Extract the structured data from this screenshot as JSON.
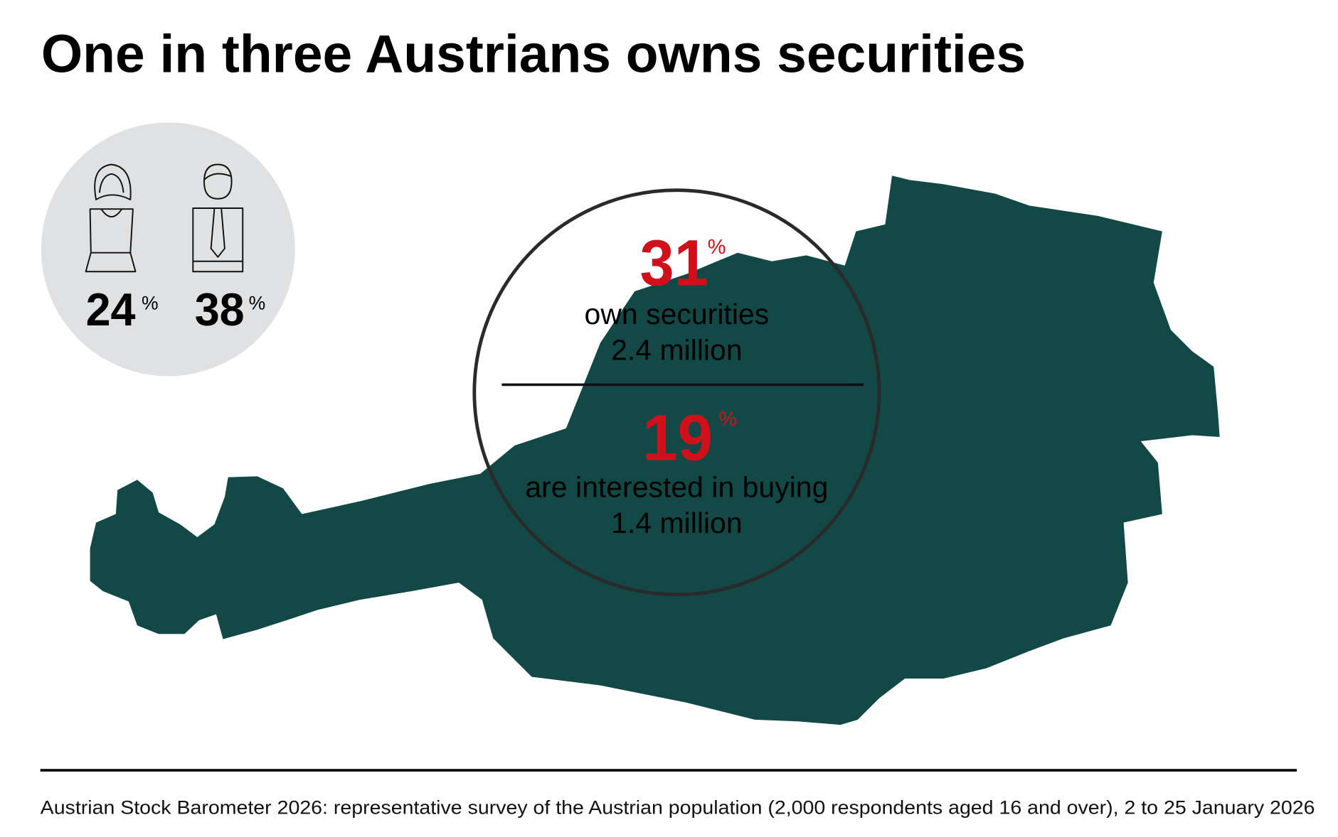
{
  "header": {
    "title": "One in three Austrians owns securities"
  },
  "gender": [
    {
      "value": 24,
      "unit": "%"
    },
    {
      "value": 38,
      "unit": "%"
    }
  ],
  "highlights": [
    {
      "value": 31,
      "unit": "%",
      "label": "own securities",
      "count": "2.4 million"
    },
    {
      "value": 19,
      "unit": "%",
      "label": "are interested in buying",
      "count": "1.4 million"
    }
  ],
  "footnote": "Austrian Stock Barometer 2026: representative survey of the Austrian population (2,000 respondents aged 16 and over), 2 to 25 January 2026"
}
